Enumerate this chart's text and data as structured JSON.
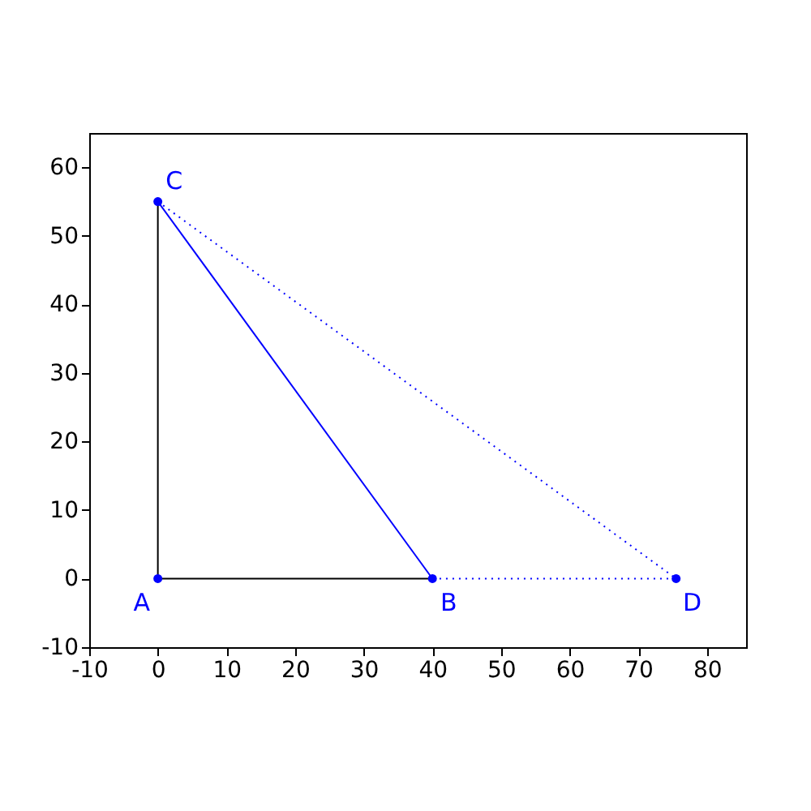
{
  "chart_data": {
    "type": "line",
    "xlim": [
      -10,
      85.7
    ],
    "ylim": [
      -10,
      65
    ],
    "xticks": [
      -10,
      0,
      10,
      20,
      30,
      40,
      50,
      60,
      70,
      80
    ],
    "yticks": [
      -10,
      0,
      10,
      20,
      30,
      40,
      50,
      60
    ],
    "grid": false,
    "marker": "none",
    "series": [
      {
        "color": "#000000",
        "line_style": "solid",
        "x": [
          40,
          0,
          0
        ],
        "values": [
          0,
          0,
          55
        ]
      },
      {
        "color": "#0000ff",
        "line_style": "solid",
        "x": [
          0,
          40
        ],
        "values": [
          55,
          0
        ]
      },
      {
        "color": "#0000ff",
        "line_style": "dotted",
        "x": [
          0,
          75.5,
          40
        ],
        "values": [
          55,
          0,
          0
        ]
      },
      {
        "type": "scatter",
        "color": "#0000ff",
        "marker": "circle",
        "x": [
          0,
          40,
          0,
          75.5
        ],
        "values": [
          0,
          0,
          55,
          0
        ]
      }
    ],
    "annotations": [
      {
        "text": "A",
        "x": 0,
        "y": 0
      },
      {
        "text": "B",
        "x": 40,
        "y": 0
      },
      {
        "text": "C",
        "x": 0,
        "y": 55
      },
      {
        "text": "D",
        "x": 75.5,
        "y": 0
      }
    ]
  }
}
